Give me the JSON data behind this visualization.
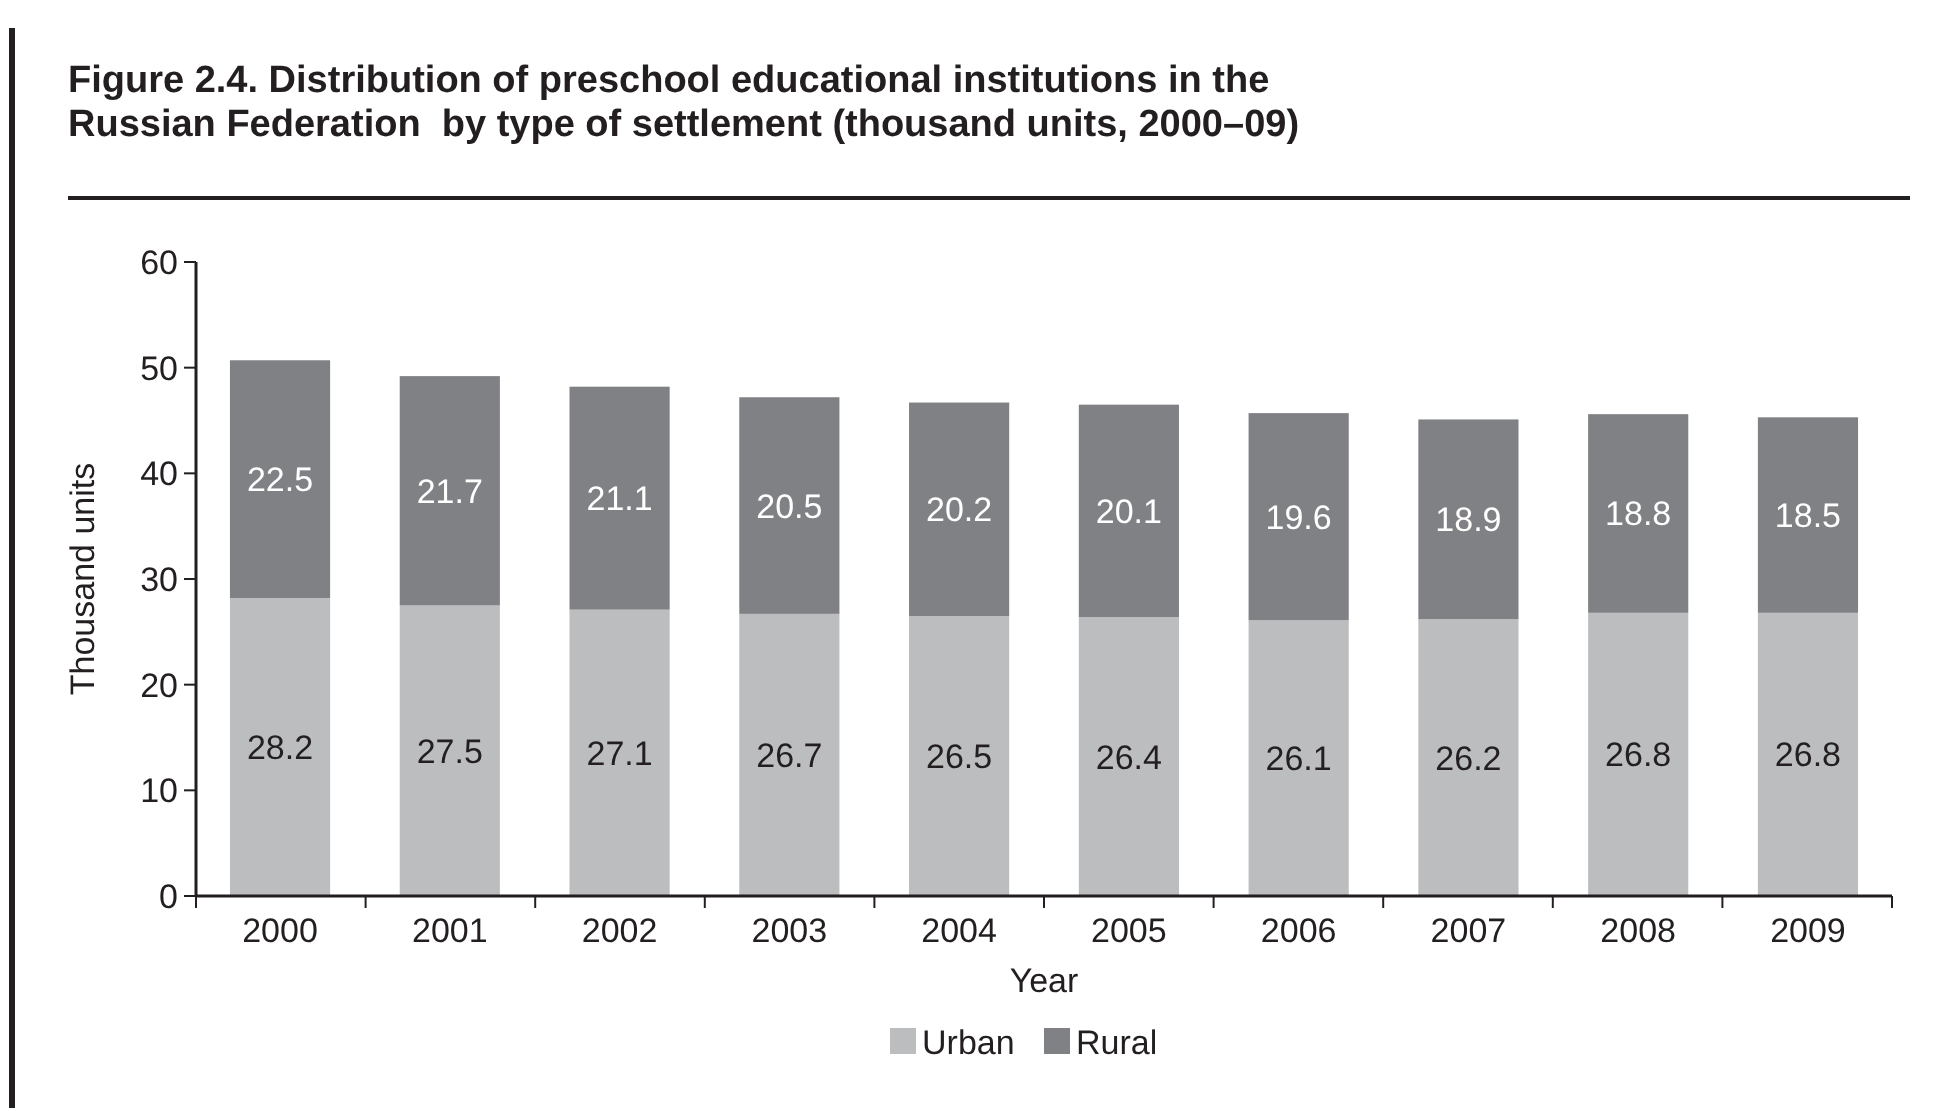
{
  "chart_data": {
    "type": "bar",
    "title": "Figure 2.4. Distribution of preschool educational institutions in the Russian Federation  by type of settlement (thousand units, 2000–09)",
    "xlabel": "Year",
    "ylabel": "Thousand units",
    "categories": [
      "2000",
      "2001",
      "2002",
      "2003",
      "2004",
      "2005",
      "2006",
      "2007",
      "2008",
      "2009"
    ],
    "series": [
      {
        "name": "Urban",
        "color": "#bcbdbf",
        "values": [
          28.2,
          27.5,
          27.1,
          26.7,
          26.5,
          26.4,
          26.1,
          26.2,
          26.8,
          26.8
        ]
      },
      {
        "name": "Rural",
        "color": "#808184",
        "values": [
          22.5,
          21.7,
          21.1,
          20.5,
          20.2,
          20.1,
          19.6,
          18.9,
          18.8,
          18.5
        ]
      }
    ],
    "stacked": true,
    "data_labels": true,
    "ylim": [
      0,
      60
    ],
    "yticks": [
      0,
      10,
      20,
      30,
      40,
      50,
      60
    ],
    "legend": "bottom"
  }
}
